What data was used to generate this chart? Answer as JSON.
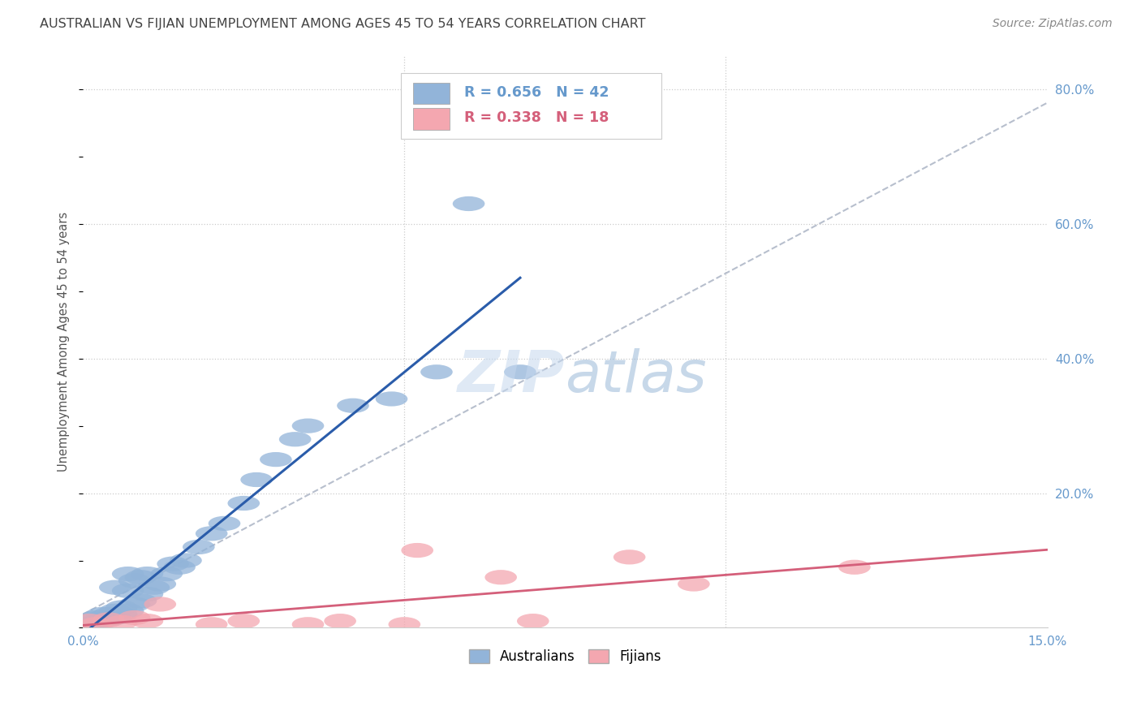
{
  "title": "AUSTRALIAN VS FIJIAN UNEMPLOYMENT AMONG AGES 45 TO 54 YEARS CORRELATION CHART",
  "source": "Source: ZipAtlas.com",
  "ylabel": "Unemployment Among Ages 45 to 54 years",
  "xmin": 0.0,
  "xmax": 0.15,
  "ymin": 0.0,
  "ymax": 0.85,
  "legend_label1": "Australians",
  "legend_label2": "Fijians",
  "r1": 0.656,
  "n1": 42,
  "r2": 0.338,
  "n2": 18,
  "color_blue": "#92b4d9",
  "color_pink": "#f4a7b0",
  "color_blue_line": "#2a5caa",
  "color_pink_line": "#d45f7a",
  "color_grid": "#cccccc",
  "background_color": "#ffffff",
  "title_color": "#444444",
  "source_color": "#888888",
  "axis_tick_color": "#6699cc",
  "aus_x": [
    0.001,
    0.001,
    0.002,
    0.002,
    0.003,
    0.003,
    0.003,
    0.004,
    0.004,
    0.005,
    0.005,
    0.005,
    0.006,
    0.006,
    0.007,
    0.007,
    0.007,
    0.008,
    0.008,
    0.009,
    0.009,
    0.01,
    0.01,
    0.011,
    0.012,
    0.013,
    0.014,
    0.015,
    0.016,
    0.018,
    0.02,
    0.022,
    0.025,
    0.027,
    0.03,
    0.033,
    0.035,
    0.042,
    0.048,
    0.055,
    0.06,
    0.068
  ],
  "aus_y": [
    0.005,
    0.01,
    0.008,
    0.015,
    0.01,
    0.015,
    0.02,
    0.012,
    0.02,
    0.015,
    0.025,
    0.06,
    0.02,
    0.03,
    0.025,
    0.055,
    0.08,
    0.035,
    0.07,
    0.04,
    0.075,
    0.05,
    0.08,
    0.06,
    0.065,
    0.08,
    0.095,
    0.09,
    0.1,
    0.12,
    0.14,
    0.155,
    0.185,
    0.22,
    0.25,
    0.28,
    0.3,
    0.33,
    0.34,
    0.38,
    0.63,
    0.38
  ],
  "fij_x": [
    0.001,
    0.002,
    0.004,
    0.006,
    0.008,
    0.01,
    0.012,
    0.02,
    0.025,
    0.035,
    0.04,
    0.05,
    0.052,
    0.065,
    0.07,
    0.085,
    0.095,
    0.12
  ],
  "fij_y": [
    0.01,
    0.005,
    0.012,
    0.008,
    0.015,
    0.01,
    0.035,
    0.005,
    0.01,
    0.005,
    0.01,
    0.005,
    0.115,
    0.075,
    0.01,
    0.105,
    0.065,
    0.09
  ],
  "ytick_positions": [
    0.0,
    0.2,
    0.4,
    0.6,
    0.8
  ],
  "ytick_labels": [
    "",
    "20.0%",
    "40.0%",
    "60.0%",
    "80.0%"
  ],
  "xtick_positions": [
    0.0,
    0.05,
    0.1,
    0.15
  ],
  "xtick_labels": [
    "0.0%",
    "",
    "",
    "15.0%"
  ]
}
